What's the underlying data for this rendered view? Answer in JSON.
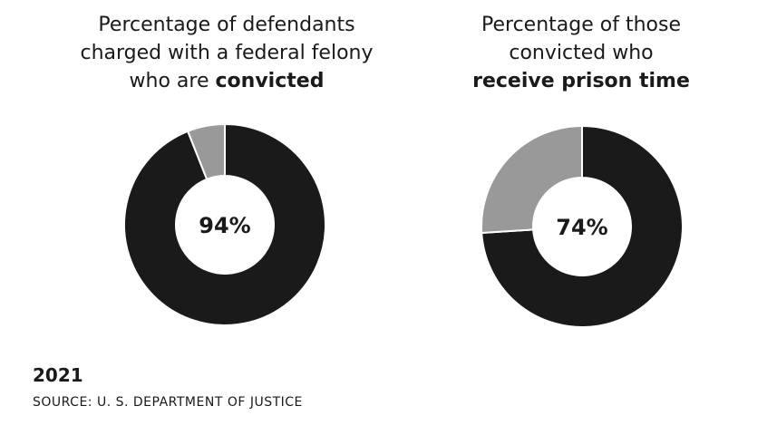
{
  "chart_data": [
    {
      "type": "pie",
      "title_lines": [
        "Percentage of defendants",
        "charged with a federal felony",
        "who are"
      ],
      "title_bold": "convicted",
      "center_label": "94%",
      "values": [
        94,
        6
      ],
      "colors": [
        "#1a1a1a",
        "#999999"
      ]
    },
    {
      "type": "pie",
      "title_lines": [
        "Percentage of those",
        "convicted who"
      ],
      "title_bold": "receive prison time",
      "center_label": "74%",
      "values": [
        74,
        26
      ],
      "colors": [
        "#1a1a1a",
        "#999999"
      ]
    }
  ],
  "footer": {
    "year": "2021",
    "source": "SOURCE: U. S. DEPARTMENT OF JUSTICE"
  }
}
